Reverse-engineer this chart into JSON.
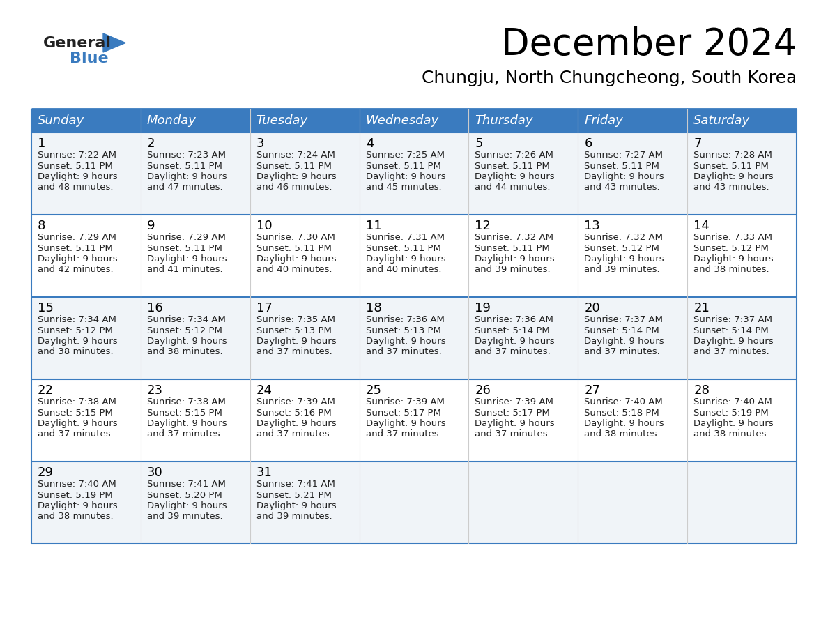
{
  "title": "December 2024",
  "subtitle": "Chungju, North Chungcheong, South Korea",
  "header_bg_color": "#3a7bbf",
  "header_text_color": "#ffffff",
  "row_bg_colors": [
    "#f0f4f8",
    "#ffffff",
    "#f0f4f8",
    "#ffffff",
    "#f0f4f8"
  ],
  "border_color": "#3a7bbf",
  "sep_color": "#cccccc",
  "days_of_week": [
    "Sunday",
    "Monday",
    "Tuesday",
    "Wednesday",
    "Thursday",
    "Friday",
    "Saturday"
  ],
  "calendar_data": [
    [
      {
        "day": 1,
        "sunrise": "7:22 AM",
        "sunset": "5:11 PM",
        "daylight_hours": 9,
        "daylight_minutes": 48
      },
      {
        "day": 2,
        "sunrise": "7:23 AM",
        "sunset": "5:11 PM",
        "daylight_hours": 9,
        "daylight_minutes": 47
      },
      {
        "day": 3,
        "sunrise": "7:24 AM",
        "sunset": "5:11 PM",
        "daylight_hours": 9,
        "daylight_minutes": 46
      },
      {
        "day": 4,
        "sunrise": "7:25 AM",
        "sunset": "5:11 PM",
        "daylight_hours": 9,
        "daylight_minutes": 45
      },
      {
        "day": 5,
        "sunrise": "7:26 AM",
        "sunset": "5:11 PM",
        "daylight_hours": 9,
        "daylight_minutes": 44
      },
      {
        "day": 6,
        "sunrise": "7:27 AM",
        "sunset": "5:11 PM",
        "daylight_hours": 9,
        "daylight_minutes": 43
      },
      {
        "day": 7,
        "sunrise": "7:28 AM",
        "sunset": "5:11 PM",
        "daylight_hours": 9,
        "daylight_minutes": 43
      }
    ],
    [
      {
        "day": 8,
        "sunrise": "7:29 AM",
        "sunset": "5:11 PM",
        "daylight_hours": 9,
        "daylight_minutes": 42
      },
      {
        "day": 9,
        "sunrise": "7:29 AM",
        "sunset": "5:11 PM",
        "daylight_hours": 9,
        "daylight_minutes": 41
      },
      {
        "day": 10,
        "sunrise": "7:30 AM",
        "sunset": "5:11 PM",
        "daylight_hours": 9,
        "daylight_minutes": 40
      },
      {
        "day": 11,
        "sunrise": "7:31 AM",
        "sunset": "5:11 PM",
        "daylight_hours": 9,
        "daylight_minutes": 40
      },
      {
        "day": 12,
        "sunrise": "7:32 AM",
        "sunset": "5:11 PM",
        "daylight_hours": 9,
        "daylight_minutes": 39
      },
      {
        "day": 13,
        "sunrise": "7:32 AM",
        "sunset": "5:12 PM",
        "daylight_hours": 9,
        "daylight_minutes": 39
      },
      {
        "day": 14,
        "sunrise": "7:33 AM",
        "sunset": "5:12 PM",
        "daylight_hours": 9,
        "daylight_minutes": 38
      }
    ],
    [
      {
        "day": 15,
        "sunrise": "7:34 AM",
        "sunset": "5:12 PM",
        "daylight_hours": 9,
        "daylight_minutes": 38
      },
      {
        "day": 16,
        "sunrise": "7:34 AM",
        "sunset": "5:12 PM",
        "daylight_hours": 9,
        "daylight_minutes": 38
      },
      {
        "day": 17,
        "sunrise": "7:35 AM",
        "sunset": "5:13 PM",
        "daylight_hours": 9,
        "daylight_minutes": 37
      },
      {
        "day": 18,
        "sunrise": "7:36 AM",
        "sunset": "5:13 PM",
        "daylight_hours": 9,
        "daylight_minutes": 37
      },
      {
        "day": 19,
        "sunrise": "7:36 AM",
        "sunset": "5:14 PM",
        "daylight_hours": 9,
        "daylight_minutes": 37
      },
      {
        "day": 20,
        "sunrise": "7:37 AM",
        "sunset": "5:14 PM",
        "daylight_hours": 9,
        "daylight_minutes": 37
      },
      {
        "day": 21,
        "sunrise": "7:37 AM",
        "sunset": "5:14 PM",
        "daylight_hours": 9,
        "daylight_minutes": 37
      }
    ],
    [
      {
        "day": 22,
        "sunrise": "7:38 AM",
        "sunset": "5:15 PM",
        "daylight_hours": 9,
        "daylight_minutes": 37
      },
      {
        "day": 23,
        "sunrise": "7:38 AM",
        "sunset": "5:15 PM",
        "daylight_hours": 9,
        "daylight_minutes": 37
      },
      {
        "day": 24,
        "sunrise": "7:39 AM",
        "sunset": "5:16 PM",
        "daylight_hours": 9,
        "daylight_minutes": 37
      },
      {
        "day": 25,
        "sunrise": "7:39 AM",
        "sunset": "5:17 PM",
        "daylight_hours": 9,
        "daylight_minutes": 37
      },
      {
        "day": 26,
        "sunrise": "7:39 AM",
        "sunset": "5:17 PM",
        "daylight_hours": 9,
        "daylight_minutes": 37
      },
      {
        "day": 27,
        "sunrise": "7:40 AM",
        "sunset": "5:18 PM",
        "daylight_hours": 9,
        "daylight_minutes": 38
      },
      {
        "day": 28,
        "sunrise": "7:40 AM",
        "sunset": "5:19 PM",
        "daylight_hours": 9,
        "daylight_minutes": 38
      }
    ],
    [
      {
        "day": 29,
        "sunrise": "7:40 AM",
        "sunset": "5:19 PM",
        "daylight_hours": 9,
        "daylight_minutes": 38
      },
      {
        "day": 30,
        "sunrise": "7:41 AM",
        "sunset": "5:20 PM",
        "daylight_hours": 9,
        "daylight_minutes": 39
      },
      {
        "day": 31,
        "sunrise": "7:41 AM",
        "sunset": "5:21 PM",
        "daylight_hours": 9,
        "daylight_minutes": 39
      },
      null,
      null,
      null,
      null
    ]
  ],
  "logo_general_color": "#222222",
  "logo_blue_color": "#3a7bbf",
  "logo_triangle_color": "#3a7bbf",
  "title_fontsize": 38,
  "subtitle_fontsize": 18,
  "header_fontsize": 13,
  "day_number_fontsize": 13,
  "cell_text_fontsize": 9.5
}
